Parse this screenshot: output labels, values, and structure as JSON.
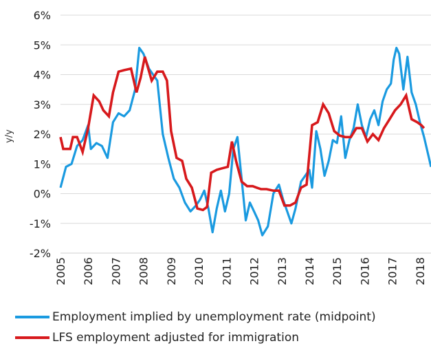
{
  "chart_data": {
    "type": "line",
    "ylabel": "y/y",
    "xlabel": "",
    "ylim": [
      -2,
      6
    ],
    "xlim": [
      2005,
      2018.4
    ],
    "y_tick_labels": [
      "-2%",
      "-1%",
      "0%",
      "1%",
      "2%",
      "3%",
      "4%",
      "5%",
      "6%"
    ],
    "x_tick_labels": [
      "2005",
      "2006",
      "2007",
      "2008",
      "2009",
      "2010",
      "2011",
      "2012",
      "2013",
      "2014",
      "2015",
      "2016",
      "2017",
      "2018"
    ],
    "grid": "horizontal",
    "legend_position": "bottom",
    "series": [
      {
        "name": "Employment implied by unemployment rate (midpoint)",
        "color": "#1a9ae0",
        "x": [
          2005.0,
          2005.2,
          2005.4,
          2005.6,
          2005.8,
          2006.0,
          2006.1,
          2006.3,
          2006.5,
          2006.7,
          2006.9,
          2007.1,
          2007.3,
          2007.5,
          2007.7,
          2007.85,
          2008.0,
          2008.2,
          2008.35,
          2008.5,
          2008.7,
          2008.9,
          2009.1,
          2009.3,
          2009.5,
          2009.7,
          2009.9,
          2010.05,
          2010.2,
          2010.35,
          2010.5,
          2010.65,
          2010.8,
          2010.95,
          2011.1,
          2011.25,
          2011.4,
          2011.55,
          2011.7,
          2011.85,
          2012.0,
          2012.15,
          2012.3,
          2012.5,
          2012.7,
          2012.9,
          2013.05,
          2013.2,
          2013.35,
          2013.5,
          2013.7,
          2013.85,
          2014.0,
          2014.1,
          2014.25,
          2014.4,
          2014.55,
          2014.7,
          2014.85,
          2015.0,
          2015.15,
          2015.3,
          2015.45,
          2015.6,
          2015.75,
          2015.9,
          2016.05,
          2016.2,
          2016.35,
          2016.5,
          2016.65,
          2016.8,
          2016.95,
          2017.05,
          2017.15,
          2017.25,
          2017.4,
          2017.55,
          2017.7,
          2017.85,
          2018.0,
          2018.15,
          2018.3,
          2018.4
        ],
        "values": [
          0.2,
          0.9,
          1.0,
          1.6,
          1.8,
          2.3,
          1.5,
          1.7,
          1.6,
          1.2,
          2.4,
          2.7,
          2.6,
          2.8,
          3.5,
          4.9,
          4.7,
          4.2,
          4.0,
          3.8,
          2.0,
          1.2,
          0.5,
          0.2,
          -0.3,
          -0.6,
          -0.4,
          -0.2,
          0.1,
          -0.5,
          -1.3,
          -0.5,
          0.1,
          -0.6,
          0.0,
          1.5,
          1.9,
          0.5,
          -0.9,
          -0.3,
          -0.6,
          -0.9,
          -1.4,
          -1.1,
          0.0,
          0.3,
          -0.2,
          -0.6,
          -1.0,
          -0.5,
          0.4,
          0.6,
          0.8,
          0.2,
          2.1,
          1.5,
          0.6,
          1.1,
          1.8,
          1.7,
          2.6,
          1.2,
          1.8,
          2.2,
          3.0,
          2.3,
          1.9,
          2.5,
          2.8,
          2.3,
          3.1,
          3.5,
          3.7,
          4.5,
          4.9,
          4.7,
          3.5,
          4.6,
          3.4,
          3.0,
          2.4,
          1.9,
          1.3,
          0.9
        ]
      },
      {
        "name": "LFS employment adjusted for immigration",
        "color": "#d7191c",
        "x": [
          2005.0,
          2005.1,
          2005.35,
          2005.45,
          2005.6,
          2005.8,
          2006.0,
          2006.2,
          2006.4,
          2006.55,
          2006.75,
          2006.9,
          2007.1,
          2007.3,
          2007.55,
          2007.75,
          2007.9,
          2008.05,
          2008.3,
          2008.5,
          2008.7,
          2008.85,
          2009.0,
          2009.2,
          2009.4,
          2009.55,
          2009.75,
          2009.95,
          2010.15,
          2010.3,
          2010.45,
          2010.65,
          2010.85,
          2011.05,
          2011.2,
          2011.35,
          2011.55,
          2011.75,
          2011.95,
          2012.1,
          2012.25,
          2012.45,
          2012.7,
          2012.9,
          2013.1,
          2013.3,
          2013.5,
          2013.7,
          2013.9,
          2014.1,
          2014.3,
          2014.5,
          2014.7,
          2014.9,
          2015.1,
          2015.3,
          2015.5,
          2015.7,
          2015.9,
          2016.1,
          2016.3,
          2016.5,
          2016.7,
          2016.9,
          2017.1,
          2017.3,
          2017.5,
          2017.7,
          2017.9,
          2018.05,
          2018.15
        ],
        "values": [
          1.9,
          1.5,
          1.5,
          1.9,
          1.9,
          1.4,
          2.2,
          3.3,
          3.1,
          2.8,
          2.6,
          3.4,
          4.1,
          4.15,
          4.2,
          3.4,
          3.9,
          4.6,
          3.8,
          4.1,
          4.1,
          3.8,
          2.1,
          1.2,
          1.1,
          0.5,
          0.2,
          -0.5,
          -0.55,
          -0.45,
          0.7,
          0.8,
          0.85,
          0.9,
          1.75,
          1.1,
          0.4,
          0.25,
          0.25,
          0.2,
          0.15,
          0.15,
          0.1,
          0.1,
          -0.4,
          -0.4,
          -0.3,
          0.2,
          0.3,
          2.3,
          2.4,
          3.0,
          2.7,
          2.1,
          1.95,
          1.9,
          1.9,
          2.2,
          2.2,
          1.75,
          2.0,
          1.8,
          2.2,
          2.5,
          2.8,
          3.0,
          3.3,
          2.5,
          2.4,
          2.3,
          2.2
        ]
      }
    ]
  }
}
